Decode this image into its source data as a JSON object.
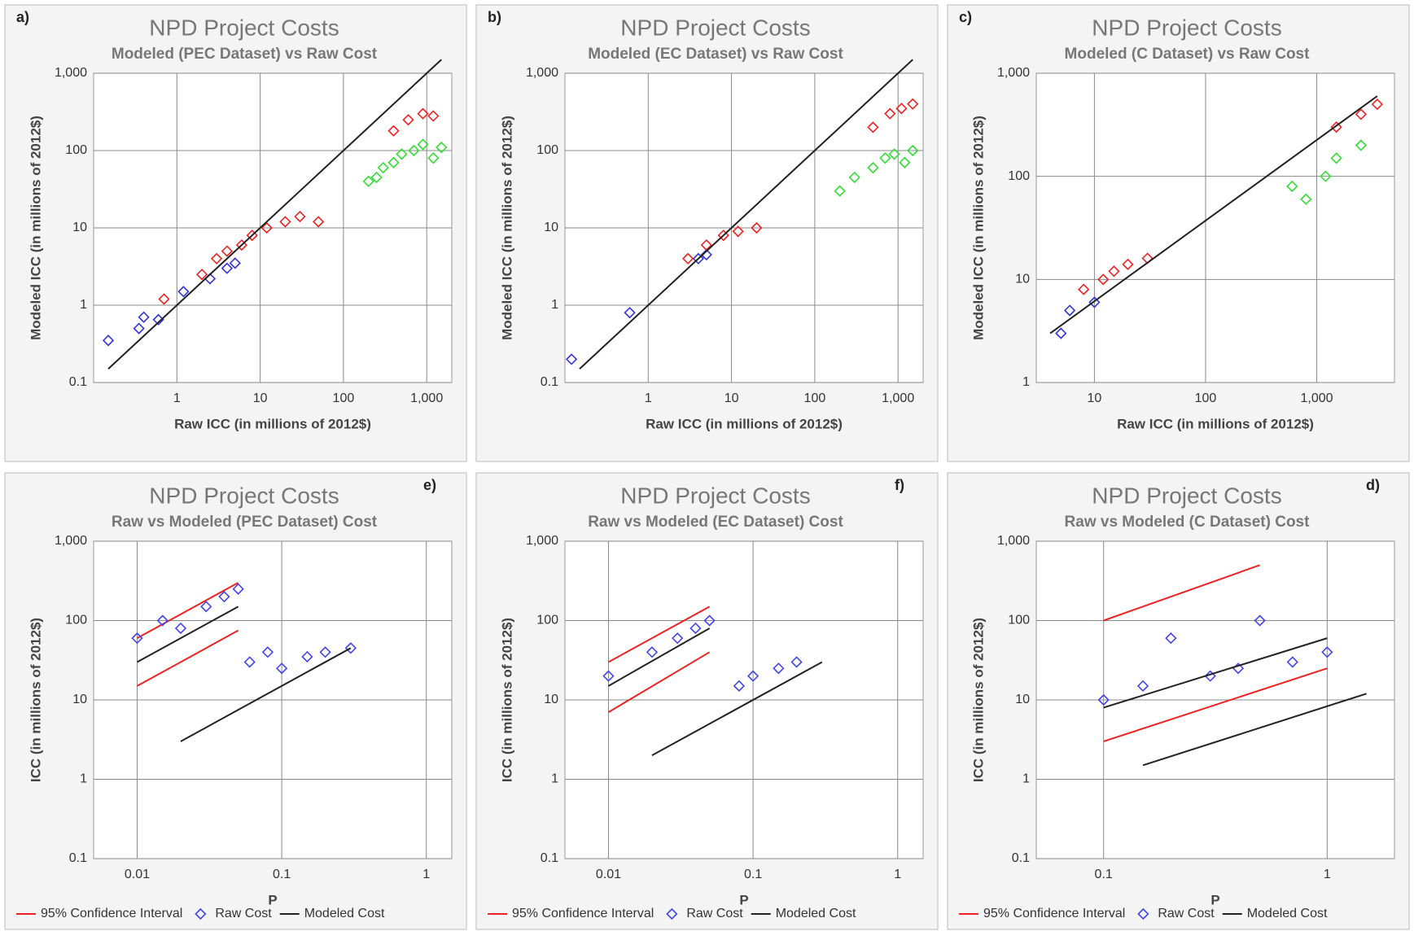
{
  "chart_data": [
    {
      "type": "scatter",
      "panel": "a)",
      "title": "NPD Project Costs",
      "subtitle": "Modeled (PEC Dataset) vs Raw Cost",
      "x_label": "Raw ICC (in millions of 2012$)",
      "y_label": "Modeled ICC (in millions of 2012$)",
      "log": true,
      "grid": true,
      "xlim": [
        0.1,
        2000
      ],
      "xticks": [
        1,
        10,
        100,
        {
          "value": 1000,
          "label": "1,000"
        }
      ],
      "ylim": [
        0.1,
        1000
      ],
      "yticks": [
        0.1,
        1,
        10,
        100,
        {
          "value": 1000,
          "label": "1,000"
        }
      ],
      "series": [
        {
          "color": "#3333dd",
          "mode": "points",
          "x": [
            0.15,
            0.35,
            0.4,
            0.6,
            1.2,
            2.5,
            4,
            5
          ],
          "values": [
            0.35,
            0.5,
            0.7,
            0.65,
            1.5,
            2.2,
            3,
            3.5
          ]
        },
        {
          "color": "#ee2222",
          "mode": "points",
          "x": [
            0.7,
            2,
            3,
            4,
            6,
            8,
            12,
            20,
            30,
            50
          ],
          "values": [
            1.2,
            2.5,
            4,
            5,
            6,
            8,
            10,
            12,
            14,
            12
          ]
        },
        {
          "color": "#33dd33",
          "mode": "points",
          "x": [
            200,
            250,
            300,
            400,
            500,
            700,
            900,
            1200,
            1500
          ],
          "values": [
            40,
            45,
            60,
            70,
            90,
            100,
            120,
            80,
            110
          ]
        },
        {
          "color": "#ee2222",
          "mode": "points",
          "x": [
            400,
            600,
            900,
            1200
          ],
          "values": [
            180,
            250,
            300,
            280
          ]
        },
        {
          "color": "#222222",
          "mode": "line",
          "x": [
            0.15,
            1500
          ],
          "values": [
            0.15,
            1500
          ]
        }
      ]
    },
    {
      "type": "scatter",
      "panel": "b)",
      "title": "NPD Project Costs",
      "subtitle": "Modeled (EC Dataset) vs Raw Cost",
      "x_label": "Raw ICC (in millions of 2012$)",
      "y_label": "Modeled ICC (in millions of 2012$)",
      "log": true,
      "grid": true,
      "xlim": [
        0.1,
        2000
      ],
      "xticks": [
        1,
        10,
        100,
        {
          "value": 1000,
          "label": "1,000"
        }
      ],
      "ylim": [
        0.1,
        1000
      ],
      "yticks": [
        0.1,
        1,
        10,
        100,
        {
          "value": 1000,
          "label": "1,000"
        }
      ],
      "series": [
        {
          "color": "#3333dd",
          "mode": "points",
          "x": [
            0.12,
            0.6,
            4,
            5
          ],
          "values": [
            0.2,
            0.8,
            4,
            4.5
          ]
        },
        {
          "color": "#ee2222",
          "mode": "points",
          "x": [
            3,
            5,
            8,
            12,
            20
          ],
          "values": [
            4,
            6,
            8,
            9,
            10
          ]
        },
        {
          "color": "#33dd33",
          "mode": "points",
          "x": [
            200,
            300,
            500,
            700,
            900,
            1200,
            1500
          ],
          "values": [
            30,
            45,
            60,
            80,
            90,
            70,
            100
          ]
        },
        {
          "color": "#ee2222",
          "mode": "points",
          "x": [
            500,
            800,
            1100,
            1500
          ],
          "values": [
            200,
            300,
            350,
            400
          ]
        },
        {
          "color": "#222222",
          "mode": "line",
          "x": [
            0.15,
            1500
          ],
          "values": [
            0.15,
            1500
          ]
        }
      ]
    },
    {
      "type": "scatter",
      "panel": "c)",
      "title": "NPD Project Costs",
      "subtitle": "Modeled (C Dataset) vs Raw Cost",
      "x_label": "Raw ICC (in millions of 2012$)",
      "y_label": "Modeled ICC (in millions of 2012$)",
      "log": true,
      "grid": true,
      "xlim": [
        3,
        5000
      ],
      "xticks": [
        10,
        100,
        {
          "value": 1000,
          "label": "1,000"
        }
      ],
      "ylim": [
        1,
        1000
      ],
      "yticks": [
        1,
        10,
        100,
        {
          "value": 1000,
          "label": "1,000"
        }
      ],
      "series": [
        {
          "color": "#3333dd",
          "mode": "points",
          "x": [
            5,
            6,
            10
          ],
          "values": [
            3,
            5,
            6
          ]
        },
        {
          "color": "#ee2222",
          "mode": "points",
          "x": [
            8,
            12,
            15,
            20,
            30
          ],
          "values": [
            8,
            10,
            12,
            14,
            16
          ]
        },
        {
          "color": "#33dd33",
          "mode": "points",
          "x": [
            600,
            800,
            1200,
            1500,
            2500
          ],
          "values": [
            80,
            60,
            100,
            150,
            200
          ]
        },
        {
          "color": "#ee2222",
          "mode": "points",
          "x": [
            1500,
            2500,
            3500
          ],
          "values": [
            300,
            400,
            500
          ]
        },
        {
          "color": "#222222",
          "mode": "line",
          "x": [
            4,
            3500
          ],
          "values": [
            3,
            600
          ]
        }
      ]
    },
    {
      "type": "scatter",
      "panel": "e)",
      "title": "NPD Project Costs",
      "subtitle": "Raw vs Modeled (PEC Dataset) Cost",
      "x_label": "P",
      "y_label": "ICC (in millions of 2012$)",
      "log": true,
      "grid": true,
      "xlim": [
        0.005,
        1.5
      ],
      "xticks": [
        0.01,
        0.1,
        1
      ],
      "ylim": [
        0.1,
        1000
      ],
      "yticks": [
        0.1,
        1,
        10,
        100,
        {
          "value": 1000,
          "label": "1,000"
        }
      ],
      "series": [
        {
          "name": "95% Confidence Interval",
          "color": "#ee2222",
          "mode": "line",
          "x": [
            0.01,
            0.05
          ],
          "values": [
            60,
            300
          ]
        },
        {
          "name": "Raw Cost",
          "color": "#4444ee",
          "mode": "points",
          "x": [
            0.01,
            0.015,
            0.02,
            0.03,
            0.04,
            0.05,
            0.06,
            0.08,
            0.1,
            0.15,
            0.2,
            0.3
          ],
          "values": [
            60,
            100,
            80,
            150,
            200,
            250,
            30,
            40,
            25,
            35,
            40,
            45
          ]
        },
        {
          "name": "Modeled Cost",
          "color": "#222222",
          "mode": "line",
          "x": [
            0.01,
            0.05
          ],
          "values": [
            30,
            150
          ]
        },
        {
          "color": "#ee2222",
          "mode": "line",
          "x": [
            0.01,
            0.05
          ],
          "values": [
            15,
            75
          ]
        },
        {
          "color": "#222222",
          "mode": "line",
          "x": [
            0.02,
            0.3
          ],
          "values": [
            3,
            45
          ]
        }
      ]
    },
    {
      "type": "scatter",
      "panel": "f)",
      "title": "NPD Project Costs",
      "subtitle": "Raw vs Modeled (EC Dataset) Cost",
      "x_label": "P",
      "y_label": "ICC (in millions of 2012$)",
      "log": true,
      "grid": true,
      "xlim": [
        0.005,
        1.5
      ],
      "xticks": [
        0.01,
        0.1,
        1
      ],
      "ylim": [
        0.1,
        1000
      ],
      "yticks": [
        0.1,
        1,
        10,
        100,
        {
          "value": 1000,
          "label": "1,000"
        }
      ],
      "series": [
        {
          "name": "95% Confidence Interval",
          "color": "#ee2222",
          "mode": "line",
          "x": [
            0.01,
            0.05
          ],
          "values": [
            30,
            150
          ]
        },
        {
          "name": "Raw Cost",
          "color": "#4444ee",
          "mode": "points",
          "x": [
            0.01,
            0.02,
            0.03,
            0.04,
            0.05,
            0.08,
            0.1,
            0.15,
            0.2
          ],
          "values": [
            20,
            40,
            60,
            80,
            100,
            15,
            20,
            25,
            30
          ]
        },
        {
          "name": "Modeled Cost",
          "color": "#222222",
          "mode": "line",
          "x": [
            0.01,
            0.05
          ],
          "values": [
            15,
            80
          ]
        },
        {
          "color": "#ee2222",
          "mode": "line",
          "x": [
            0.01,
            0.05
          ],
          "values": [
            7,
            40
          ]
        },
        {
          "color": "#222222",
          "mode": "line",
          "x": [
            0.02,
            0.3
          ],
          "values": [
            2,
            30
          ]
        }
      ]
    },
    {
      "type": "scatter",
      "panel": "d)",
      "title": "NPD Project Costs",
      "subtitle": "Raw vs Modeled (C Dataset) Cost",
      "x_label": "P",
      "y_label": "ICC (in millions of 2012$)",
      "log": true,
      "grid": true,
      "xlim": [
        0.05,
        2
      ],
      "xticks": [
        0.1,
        1
      ],
      "ylim": [
        0.1,
        1000
      ],
      "yticks": [
        0.1,
        1,
        10,
        100,
        {
          "value": 1000,
          "label": "1,000"
        }
      ],
      "series": [
        {
          "name": "95% Confidence Interval",
          "color": "#ee2222",
          "mode": "line",
          "x": [
            0.1,
            0.5
          ],
          "values": [
            100,
            500
          ]
        },
        {
          "name": "Raw Cost",
          "color": "#4444ee",
          "mode": "points",
          "x": [
            0.1,
            0.15,
            0.2,
            0.3,
            0.4,
            0.5,
            0.7,
            1
          ],
          "values": [
            10,
            15,
            60,
            20,
            25,
            100,
            30,
            40
          ]
        },
        {
          "name": "Modeled Cost",
          "color": "#222222",
          "mode": "line",
          "x": [
            0.1,
            1
          ],
          "values": [
            8,
            60
          ]
        },
        {
          "color": "#ee2222",
          "mode": "line",
          "x": [
            0.1,
            1
          ],
          "values": [
            3,
            25
          ]
        },
        {
          "color": "#222222",
          "mode": "line",
          "x": [
            0.15,
            1.5
          ],
          "values": [
            1.5,
            12
          ]
        }
      ]
    }
  ]
}
